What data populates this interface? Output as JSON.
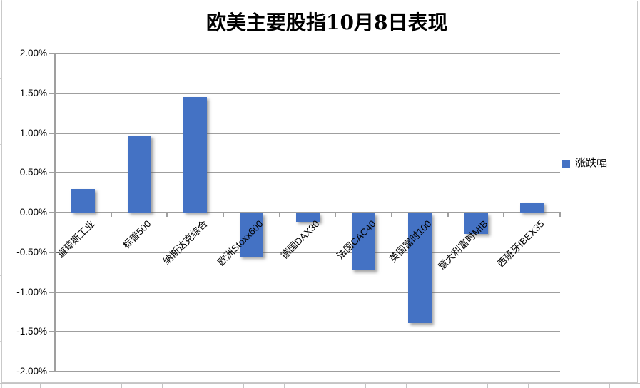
{
  "chart_data": {
    "type": "bar",
    "title": "欧美主要股指10月8日表现",
    "categories": [
      "道琼斯工业",
      "标普500",
      "纳斯达克综合",
      "欧洲Stoxx600",
      "德国DAX30",
      "法国CAC40",
      "英国富时100",
      "意大利富时MIB",
      "西班牙IBEX35"
    ],
    "series": [
      {
        "name": "涨跌幅",
        "values": [
          0.3,
          0.97,
          1.45,
          -0.55,
          -0.11,
          -0.72,
          -1.38,
          -0.26,
          0.13
        ]
      }
    ],
    "value_unit": "%",
    "ylim": [
      -2.0,
      2.0
    ],
    "ytick_step": 0.5,
    "ytick_labels": [
      "2.00%",
      "1.50%",
      "1.00%",
      "0.50%",
      "0.00%",
      "-0.50%",
      "-1.00%",
      "-1.50%",
      "-2.00%"
    ],
    "legend_position": "right",
    "grid": true,
    "colors": {
      "bar": "#4472C4",
      "gridline": "#9f9f9f",
      "frame": "#c9c9c9"
    }
  }
}
